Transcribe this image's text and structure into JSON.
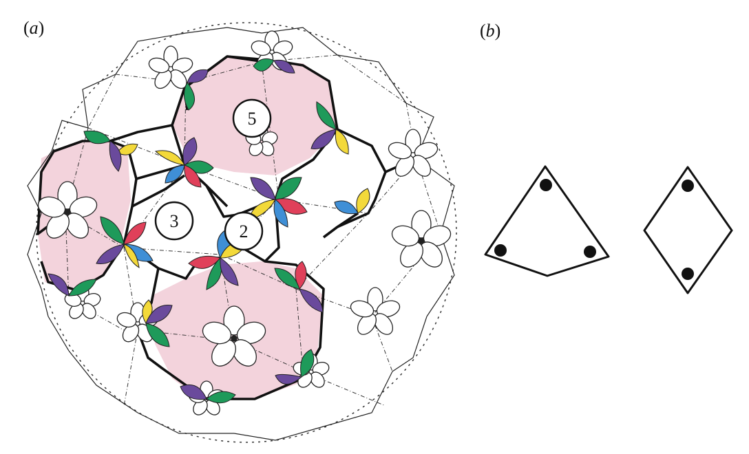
{
  "panels": {
    "a": {
      "open": "(",
      "letter": "a",
      "close": ")"
    },
    "b": {
      "open": "(",
      "letter": "b",
      "close": ")"
    }
  },
  "vertex_labels": [
    "5",
    "3",
    "2"
  ],
  "colors": {
    "green": "#1e9a5a",
    "purple": "#6a4a9c",
    "yellow": "#f3d93a",
    "blue": "#3f8fd6",
    "red": "#e0405a",
    "pink": "#f3d3dc",
    "ink": "#111111"
  },
  "shapes_b": [
    "kite-with-three-dots",
    "rhombus-with-two-dots"
  ]
}
